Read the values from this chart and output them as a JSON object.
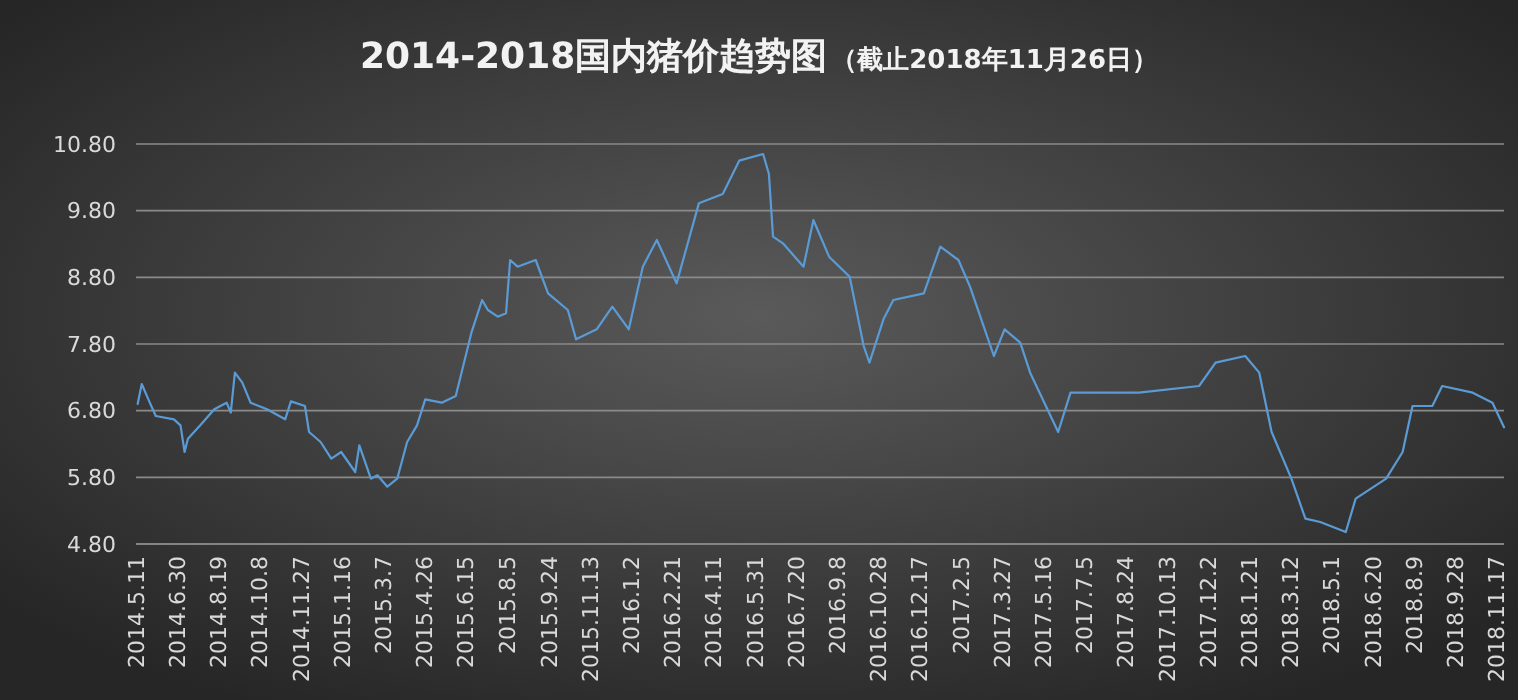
{
  "chart_data": {
    "type": "line",
    "title": "2014-2018国内猪价趋势图",
    "subtitle": "（截止2018年11月26日）",
    "series": [
      {
        "color": "#5b9bd5",
        "x": [
          "2014-05-13",
          "2014-05-18",
          "2014-05-26",
          "2014-06-04",
          "2014-06-26",
          "2014-07-04",
          "2014-07-09",
          "2014-07-13",
          "2014-07-28",
          "2014-08-14",
          "2014-08-29",
          "2014-09-03",
          "2014-09-08",
          "2014-09-17",
          "2014-09-27",
          "2014-10-17",
          "2014-11-08",
          "2014-11-15",
          "2014-12-02",
          "2014-12-07",
          "2014-12-21",
          "2015-01-03",
          "2015-01-15",
          "2015-02-01",
          "2015-02-06",
          "2015-02-20",
          "2015-02-28",
          "2015-03-12",
          "2015-03-24",
          "2015-04-05",
          "2015-04-17",
          "2015-04-27",
          "2015-05-17",
          "2015-06-03",
          "2015-06-10",
          "2015-06-22",
          "2015-07-05",
          "2015-07-12",
          "2015-07-24",
          "2015-08-03",
          "2015-08-08",
          "2015-08-17",
          "2015-09-08",
          "2015-09-23",
          "2015-10-17",
          "2015-10-27",
          "2015-11-21",
          "2015-12-10",
          "2015-12-30",
          "2016-01-16",
          "2016-02-02",
          "2016-02-26",
          "2016-03-24",
          "2016-04-22",
          "2016-05-12",
          "2016-06-10",
          "2016-06-17",
          "2016-06-22",
          "2016-07-04",
          "2016-07-29",
          "2016-08-10",
          "2016-08-29",
          "2016-09-23",
          "2016-10-10",
          "2016-10-17",
          "2016-11-03",
          "2016-11-15",
          "2016-12-22",
          "2017-01-11",
          "2017-02-02",
          "2017-02-16",
          "2017-03-17",
          "2017-03-30",
          "2017-04-18",
          "2017-04-30",
          "2017-06-03",
          "2017-06-18",
          "2017-09-09",
          "2017-11-21",
          "2017-12-11",
          "2018-01-16",
          "2018-02-02",
          "2018-02-17",
          "2018-03-13",
          "2018-03-30",
          "2018-04-17",
          "2018-05-18",
          "2018-05-30",
          "2018-07-06",
          "2018-07-26",
          "2018-08-07",
          "2018-08-31",
          "2018-09-12",
          "2018-10-19",
          "2018-11-12",
          "2018-11-26"
        ],
        "values": [
          6.9,
          7.2,
          6.97,
          6.72,
          6.67,
          6.58,
          6.18,
          6.38,
          6.58,
          6.82,
          6.92,
          6.77,
          7.37,
          7.22,
          6.92,
          6.82,
          6.67,
          6.94,
          6.87,
          6.48,
          6.33,
          6.08,
          6.18,
          5.88,
          6.28,
          5.78,
          5.83,
          5.66,
          5.78,
          6.33,
          6.58,
          6.97,
          6.92,
          7.02,
          7.37,
          7.97,
          8.46,
          8.31,
          8.21,
          8.26,
          9.06,
          8.96,
          9.06,
          8.56,
          8.31,
          7.87,
          8.02,
          8.36,
          8.02,
          8.96,
          9.36,
          8.71,
          9.91,
          10.05,
          10.55,
          10.65,
          10.35,
          9.41,
          9.31,
          8.96,
          9.66,
          9.11,
          8.81,
          7.77,
          7.52,
          8.17,
          8.46,
          8.56,
          9.26,
          9.06,
          8.66,
          7.62,
          8.02,
          7.82,
          7.37,
          6.48,
          7.07,
          7.07,
          7.17,
          7.52,
          7.62,
          7.37,
          6.48,
          5.78,
          5.18,
          5.13,
          4.98,
          5.48,
          5.78,
          6.18,
          6.87,
          6.87,
          7.17,
          7.07,
          6.92,
          6.55
        ]
      }
    ],
    "xlim": [
      "2014-05-11",
      "2018-11-26"
    ],
    "xticks": [
      {
        "value": "2014-05-11",
        "label": "2014.5.11"
      },
      {
        "value": "2014-06-30",
        "label": "2014.6.30"
      },
      {
        "value": "2014-08-19",
        "label": "2014.8.19"
      },
      {
        "value": "2014-10-08",
        "label": "2014.10.8"
      },
      {
        "value": "2014-11-27",
        "label": "2014.11.27"
      },
      {
        "value": "2015-01-16",
        "label": "2015.1.16"
      },
      {
        "value": "2015-03-07",
        "label": "2015.3.7"
      },
      {
        "value": "2015-04-26",
        "label": "2015.4.26"
      },
      {
        "value": "2015-06-15",
        "label": "2015.6.15"
      },
      {
        "value": "2015-08-05",
        "label": "2015.8.5"
      },
      {
        "value": "2015-09-24",
        "label": "2015.9.24"
      },
      {
        "value": "2015-11-13",
        "label": "2015.11.13"
      },
      {
        "value": "2016-01-02",
        "label": "2016.1.2"
      },
      {
        "value": "2016-02-21",
        "label": "2016.2.21"
      },
      {
        "value": "2016-04-11",
        "label": "2016.4.11"
      },
      {
        "value": "2016-05-31",
        "label": "2016.5.31"
      },
      {
        "value": "2016-07-20",
        "label": "2016.7.20"
      },
      {
        "value": "2016-09-08",
        "label": "2016.9.8"
      },
      {
        "value": "2016-10-28",
        "label": "2016.10.28"
      },
      {
        "value": "2016-12-17",
        "label": "2016.12.17"
      },
      {
        "value": "2017-02-05",
        "label": "2017.2.5"
      },
      {
        "value": "2017-03-27",
        "label": "2017.3.27"
      },
      {
        "value": "2017-05-16",
        "label": "2017.5.16"
      },
      {
        "value": "2017-07-05",
        "label": "2017.7.5"
      },
      {
        "value": "2017-08-24",
        "label": "2017.8.24"
      },
      {
        "value": "2017-10-13",
        "label": "2017.10.13"
      },
      {
        "value": "2017-12-02",
        "label": "2017.12.2"
      },
      {
        "value": "2018-01-21",
        "label": "2018.1.21"
      },
      {
        "value": "2018-03-12",
        "label": "2018.3.12"
      },
      {
        "value": "2018-05-01",
        "label": "2018.5.1"
      },
      {
        "value": "2018-06-20",
        "label": "2018.6.20"
      },
      {
        "value": "2018-08-09",
        "label": "2018.8.9"
      },
      {
        "value": "2018-09-28",
        "label": "2018.9.28"
      },
      {
        "value": "2018-11-17",
        "label": "2018.11.17"
      }
    ],
    "ylim": [
      4.8,
      10.8
    ],
    "yticks": [
      {
        "value": 4.8,
        "label": "4.80"
      },
      {
        "value": 5.8,
        "label": "5.80"
      },
      {
        "value": 6.8,
        "label": "6.80"
      },
      {
        "value": 7.8,
        "label": "7.80"
      },
      {
        "value": 8.8,
        "label": "8.80"
      },
      {
        "value": 9.8,
        "label": "9.80"
      },
      {
        "value": 10.8,
        "label": "10.80"
      }
    ],
    "grid": "y",
    "line_style": "solid",
    "marker": "none"
  }
}
